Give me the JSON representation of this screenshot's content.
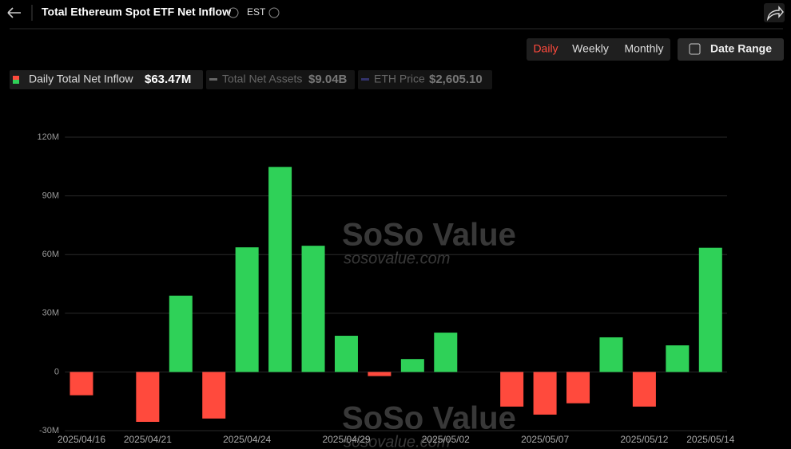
{
  "header": {
    "title": "Total Ethereum Spot ETF Net Inflow",
    "timezone": "EST"
  },
  "period_buttons": [
    "Daily",
    "Weekly",
    "Monthly"
  ],
  "date_range_button": "Date Range",
  "legend": [
    {
      "label": "Daily Total Net Inflow",
      "value": "$63.47M"
    },
    {
      "label": "Total Net Assets",
      "value": "$9.04B"
    },
    {
      "label": "ETH Price",
      "value": "$2,605.10"
    }
  ],
  "watermark": {
    "brand": "SoSo Value",
    "url": "sosovalue.com"
  },
  "chart_data": {
    "type": "bar",
    "categories": [
      "2025/04/16",
      null,
      "2025/04/21",
      null,
      null,
      "2025/04/24",
      null,
      null,
      "2025/04/29",
      null,
      null,
      "2025/05/02",
      null,
      null,
      "2025/05/07",
      null,
      null,
      "2025/05/12",
      null,
      "2025/05/14"
    ],
    "values": [
      -11.9,
      0,
      -25.5,
      39.0,
      -23.8,
      63.7,
      104.8,
      64.5,
      18.5,
      -2.1,
      6.6,
      20.1,
      0,
      -17.7,
      -21.8,
      -16.0,
      17.7,
      -17.7,
      13.6,
      63.47
    ],
    "positive_color": "#2fd158",
    "negative_color": "#ff4a3d",
    "ylim": [
      -30,
      120
    ],
    "yticks": [
      {
        "value": -30,
        "label": "-30M"
      },
      0,
      {
        "value": 30,
        "label": "30M"
      },
      {
        "value": 60,
        "label": "60M"
      },
      {
        "value": 90,
        "label": "90M"
      },
      {
        "value": 120,
        "label": "120M"
      }
    ],
    "grid": true
  }
}
